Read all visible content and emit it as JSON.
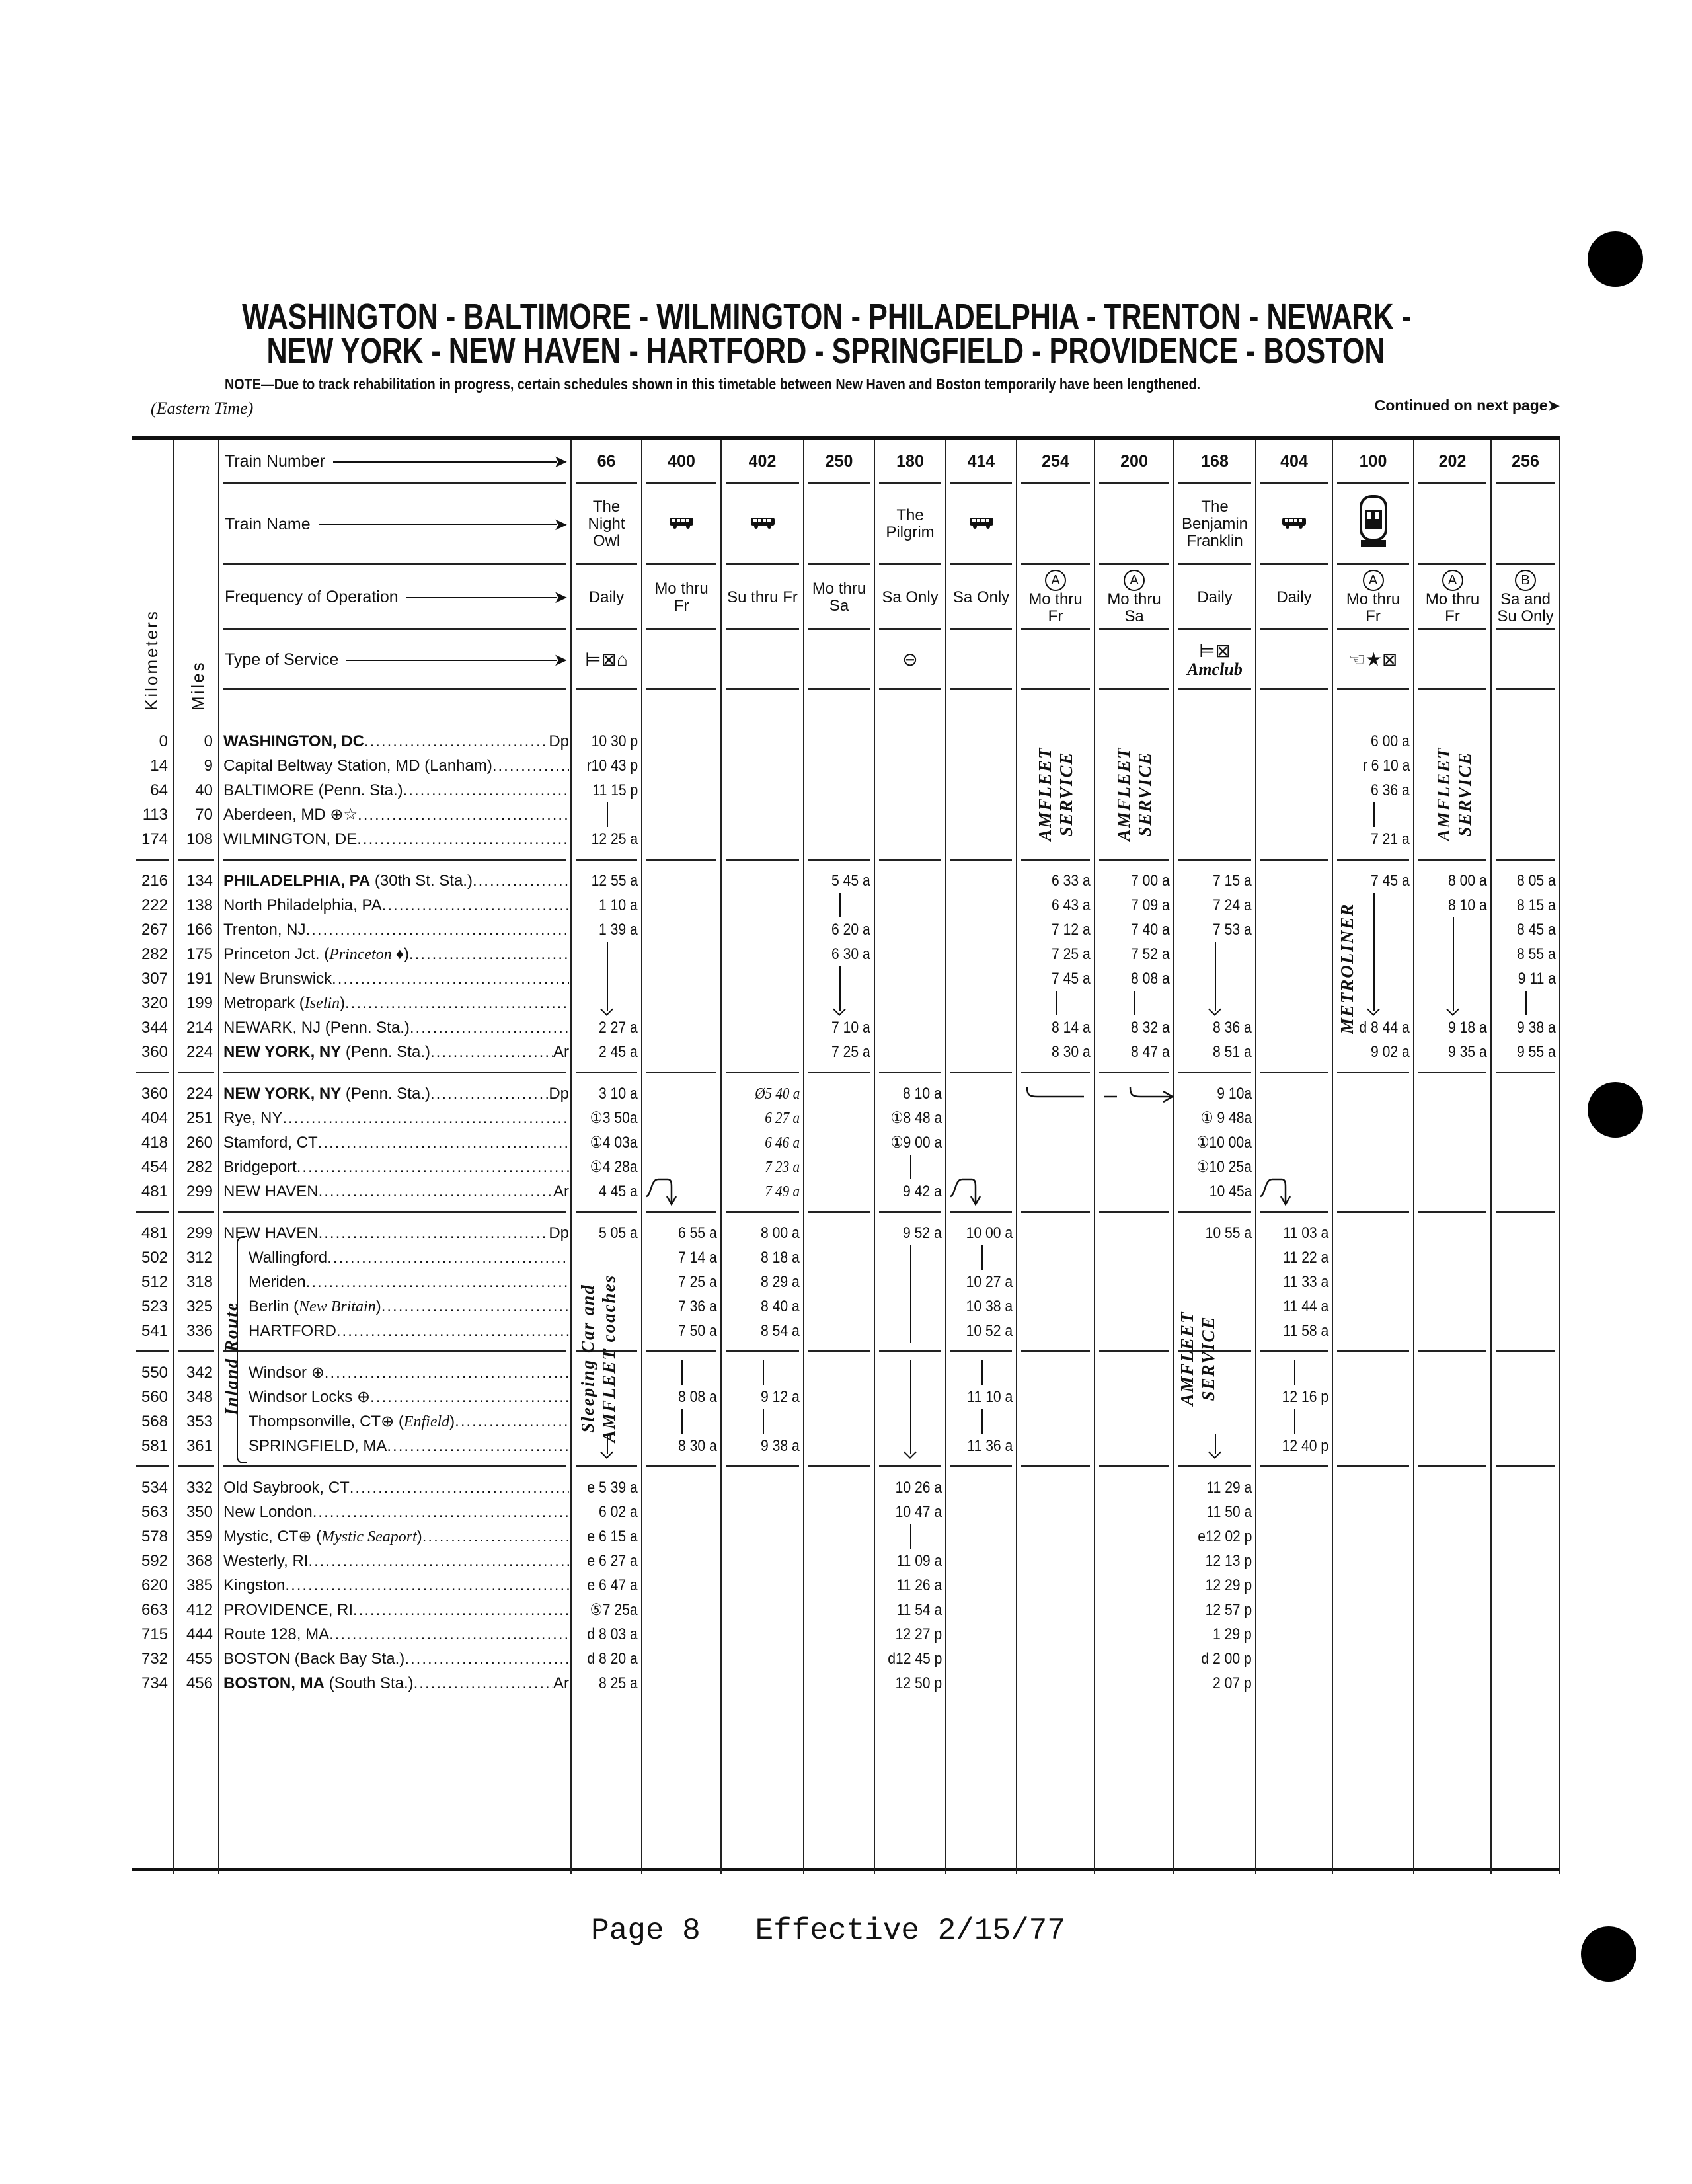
{
  "title_line1": "WASHINGTON - BALTIMORE - WILMINGTON - PHILADELPHIA - TRENTON - NEWARK -",
  "title_line2": "NEW YORK - NEW HAVEN - HARTFORD - SPRINGFIELD - PROVIDENCE - BOSTON",
  "note": "NOTE—Due to track rehabilitation in progress, certain schedules shown in this timetable between New Haven and Boston temporarily have been lengthened.",
  "time_zone": "(Eastern Time)",
  "continued": "Continued on next page",
  "footer": "Page 8   Effective 2/15/77",
  "header_labels": {
    "kilometers": "Kilometers",
    "miles": "Miles",
    "train_number": "Train Number",
    "train_name": "Train Name",
    "frequency": "Frequency of Operation",
    "service": "Type of Service"
  },
  "trains": [
    {
      "number": "66",
      "name": [
        "The",
        "Night",
        "Owl"
      ],
      "freq_mark": "",
      "freq": [
        "Daily"
      ],
      "service_icons": [
        "sleeping-car",
        "dining-car",
        "lounge-car"
      ]
    },
    {
      "number": "400",
      "name_icon": "bus-icon",
      "freq_mark": "",
      "freq": [
        "Mo thru",
        "Fr"
      ]
    },
    {
      "number": "402",
      "name_icon": "bus-icon",
      "freq_mark": "",
      "freq": [
        "Su thru Fr"
      ]
    },
    {
      "number": "250",
      "freq_mark": "",
      "freq": [
        "Mo thru",
        "Sa"
      ]
    },
    {
      "number": "180",
      "name": [
        "The",
        "Pilgrim"
      ],
      "freq_mark": "",
      "freq": [
        "Sa Only"
      ],
      "service_icons": [
        "snack-bar"
      ]
    },
    {
      "number": "414",
      "name_icon": "bus-icon",
      "freq_mark": "",
      "freq": [
        "Sa Only"
      ]
    },
    {
      "number": "254",
      "freq_mark": "A",
      "freq": [
        "Mo thru",
        "Fr"
      ]
    },
    {
      "number": "200",
      "freq_mark": "A",
      "freq": [
        "Mo thru",
        "Sa"
      ]
    },
    {
      "number": "168",
      "name": [
        "The",
        "Benjamin",
        "Franklin"
      ],
      "freq_mark": "",
      "freq": [
        "Daily"
      ],
      "service_icons": [
        "sleeping-car",
        "dining-car"
      ],
      "service_text": "Amclub"
    },
    {
      "number": "404",
      "name_icon": "bus-icon",
      "freq_mark": "",
      "freq": [
        "Daily"
      ]
    },
    {
      "number": "100",
      "name_icon": "metroliner-icon",
      "freq_mark": "A",
      "freq": [
        "Mo thru",
        "Fr"
      ],
      "service_icons": [
        "parlor-car",
        "star",
        "dining-car"
      ]
    },
    {
      "number": "202",
      "freq_mark": "A",
      "freq": [
        "Mo thru",
        "Fr"
      ]
    },
    {
      "number": "256",
      "freq_mark": "B",
      "freq": [
        "Sa and",
        "Su Only"
      ]
    }
  ],
  "vertical_notes": {
    "amfleet": [
      "AMFLEET",
      "SERVICE"
    ],
    "metroliner": "METROLINER",
    "sleeping": [
      "Sleeping Car and",
      "AMFLEET coaches"
    ],
    "inland": "Inland Route"
  },
  "sections": [
    {
      "rows": [
        {
          "km": "0",
          "mi": "0",
          "name": "WASHINGTON, DC",
          "bold": true,
          "da": "Dp",
          "times": [
            "10 30 p",
            "",
            "",
            "",
            "",
            "",
            "",
            "",
            "",
            "",
            "6 00 a",
            "",
            ""
          ]
        },
        {
          "km": "14",
          "mi": "9",
          "name": "Capital Beltway Station, MD (Lanham)",
          "times": [
            "r10 43 p",
            "",
            "",
            "",
            "",
            "",
            "",
            "",
            "",
            "",
            "r 6 10 a",
            "",
            ""
          ]
        },
        {
          "km": "64",
          "mi": "40",
          "name": "BALTIMORE (Penn. Sta.)",
          "times": [
            "11 15 p",
            "",
            "",
            "",
            "",
            "",
            "",
            "",
            "",
            "",
            "6 36 a",
            "",
            ""
          ]
        },
        {
          "km": "113",
          "mi": "70",
          "name": "Aberdeen, MD ⊕☆",
          "times": [
            "|",
            "",
            "",
            "",
            "",
            "",
            "",
            "",
            "",
            "",
            "|",
            "",
            ""
          ]
        },
        {
          "km": "174",
          "mi": "108",
          "name": "WILMINGTON, DE",
          "times": [
            "12 25 a",
            "",
            "",
            "",
            "",
            "",
            "",
            "",
            "",
            "",
            "7 21 a",
            "",
            ""
          ]
        }
      ]
    },
    {
      "rows": [
        {
          "km": "216",
          "mi": "134",
          "name": "PHILADELPHIA, PA",
          "bold": true,
          "tail": " (30th St. Sta.)",
          "times": [
            "12 55 a",
            "",
            "",
            "5 45 a",
            "",
            "",
            "6 33 a",
            "7 00 a",
            "7 15 a",
            "",
            "7 45 a",
            "8 00 a",
            "8 05 a"
          ]
        },
        {
          "km": "222",
          "mi": "138",
          "name": "North Philadelphia, PA",
          "times": [
            "1 10 a",
            "",
            "",
            "|",
            "",
            "",
            "6 43 a",
            "7 09 a",
            "7 24 a",
            "",
            "|",
            "8 10 a",
            "8 15 a"
          ]
        },
        {
          "km": "267",
          "mi": "166",
          "name": "Trenton, NJ",
          "times": [
            "1 39 a",
            "",
            "",
            "6 20 a",
            "",
            "",
            "7 12 a",
            "7 40 a",
            "7 53 a",
            "",
            "|",
            "|",
            "8 45 a"
          ]
        },
        {
          "km": "282",
          "mi": "175",
          "name": "Princeton Jct. (",
          "italic": "Princeton ♦",
          "tail": ")",
          "times": [
            "|",
            "",
            "",
            "6 30 a",
            "",
            "",
            "7 25 a",
            "7 52 a",
            "|",
            "",
            "|",
            "|",
            "8 55 a"
          ]
        },
        {
          "km": "307",
          "mi": "191",
          "name": "New Brunswick",
          "times": [
            "|",
            "",
            "",
            "|",
            "",
            "",
            "7 45 a",
            "8 08 a",
            "|",
            "",
            "|",
            "|",
            "9 11 a"
          ]
        },
        {
          "km": "320",
          "mi": "199",
          "name": "Metropark (",
          "italic": "Iselin",
          "tail": ")",
          "times": [
            "↓",
            "",
            "",
            "↓",
            "",
            "",
            "|",
            "|",
            "↓",
            "",
            "↓",
            "↓",
            "|"
          ]
        },
        {
          "km": "344",
          "mi": "214",
          "name": "NEWARK, NJ (Penn. Sta.)",
          "times": [
            "2 27 a",
            "",
            "",
            "7 10 a",
            "",
            "",
            "8 14 a",
            "8 32 a",
            "8 36 a",
            "",
            "d 8 44 a",
            "9 18 a",
            "9 38 a"
          ]
        },
        {
          "km": "360",
          "mi": "224",
          "name": "NEW YORK, NY",
          "bold": true,
          "tail": " (Penn. Sta.)",
          "da": "Ar",
          "times": [
            "2 45 a",
            "",
            "",
            "7 25 a",
            "",
            "",
            "8 30 a",
            "8 47 a",
            "8 51 a",
            "",
            "9 02 a",
            "9 35 a",
            "9 55 a"
          ]
        }
      ]
    },
    {
      "rows": [
        {
          "km": "360",
          "mi": "224",
          "name": "NEW YORK, NY",
          "bold": true,
          "tail": " (Penn. Sta.)",
          "da": "Dp",
          "times": [
            "3 10 a",
            "",
            "Ø5 40 a",
            "",
            "8 10 a",
            "",
            "",
            "",
            "9 10a",
            "",
            "",
            "",
            ""
          ]
        },
        {
          "km": "404",
          "mi": "251",
          "name": "Rye, NY",
          "times": [
            "①3 50a",
            "",
            "6 27 a",
            "",
            "①8 48 a",
            "",
            "",
            "",
            "① 9 48a",
            "",
            "",
            "",
            ""
          ]
        },
        {
          "km": "418",
          "mi": "260",
          "name": "Stamford, CT",
          "times": [
            "①4 03a",
            "",
            "6 46 a",
            "",
            "①9 00 a",
            "",
            "",
            "",
            "①10 00a",
            "",
            "",
            "",
            ""
          ]
        },
        {
          "km": "454",
          "mi": "282",
          "name": "Bridgeport",
          "times": [
            "①4 28a",
            "",
            "7 23 a",
            "",
            "|",
            "",
            "",
            "",
            "①10 25a",
            "",
            "",
            "",
            ""
          ]
        },
        {
          "km": "481",
          "mi": "299",
          "name": "NEW HAVEN",
          "da": "Ar",
          "times": [
            "4 45 a",
            "⤵",
            "7 49 a",
            "",
            "9 42 a",
            "⤵",
            "",
            "",
            "10 45a",
            "⤵",
            "",
            "",
            ""
          ]
        }
      ]
    },
    {
      "rows": [
        {
          "km": "481",
          "mi": "299",
          "name": "NEW HAVEN",
          "da": "Dp",
          "times": [
            "5 05 a",
            "6 55 a",
            "8 00 a",
            "",
            "9 52 a",
            "10 00 a",
            "",
            "",
            "10 55 a",
            "11 03 a",
            "",
            "",
            ""
          ]
        },
        {
          "km": "502",
          "mi": "312",
          "name": "Wallingford",
          "inland": true,
          "times": [
            "",
            "7 14 a",
            "8 18 a",
            "",
            "|",
            "|",
            "",
            "",
            "",
            "11 22 a",
            "",
            "",
            ""
          ]
        },
        {
          "km": "512",
          "mi": "318",
          "name": "Meriden",
          "inland": true,
          "times": [
            "",
            "7 25 a",
            "8 29 a",
            "",
            "|",
            "10 27 a",
            "",
            "",
            "",
            "11 33 a",
            "",
            "",
            ""
          ]
        },
        {
          "km": "523",
          "mi": "325",
          "name": "Berlin (",
          "italic": "New Britain",
          "tail": ")",
          "inland": true,
          "times": [
            "",
            "7 36 a",
            "8 40 a",
            "",
            "|",
            "10 38 a",
            "",
            "",
            "",
            "11 44 a",
            "",
            "",
            ""
          ]
        },
        {
          "km": "541",
          "mi": "336",
          "name": "HARTFORD",
          "inland": true,
          "times": [
            "",
            "7 50 a",
            "8 54 a",
            "",
            "|",
            "10 52 a",
            "",
            "",
            "",
            "11 58 a",
            "",
            "",
            ""
          ]
        }
      ]
    },
    {
      "rows": [
        {
          "km": "550",
          "mi": "342",
          "name": "Windsor ⊕",
          "inland": true,
          "times": [
            "",
            "|",
            "|",
            "",
            "|",
            "|",
            "",
            "",
            "",
            "|",
            "",
            "",
            ""
          ]
        },
        {
          "km": "560",
          "mi": "348",
          "name": "Windsor Locks ⊕",
          "inland": true,
          "times": [
            "",
            "8 08 a",
            "9 12 a",
            "",
            "|",
            "11 10 a",
            "",
            "",
            "",
            "12 16 p",
            "",
            "",
            ""
          ]
        },
        {
          "km": "568",
          "mi": "353",
          "name": "Thompsonville, CT⊕ (",
          "italic": "Enfield",
          "tail": ")",
          "inland": true,
          "times": [
            "",
            "|",
            "|",
            "",
            "|",
            "|",
            "",
            "",
            "",
            "|",
            "",
            "",
            ""
          ]
        },
        {
          "km": "581",
          "mi": "361",
          "name": "SPRINGFIELD, MA",
          "inland": true,
          "times": [
            "↓",
            "8 30 a",
            "9 38 a",
            "",
            "↓",
            "11 36 a",
            "",
            "",
            "↓",
            "12 40 p",
            "",
            "",
            ""
          ]
        }
      ]
    },
    {
      "rows": [
        {
          "km": "534",
          "mi": "332",
          "name": "Old Saybrook, CT",
          "times": [
            "e 5 39 a",
            "",
            "",
            "",
            "10 26 a",
            "",
            "",
            "",
            "11 29 a",
            "",
            "",
            "",
            ""
          ]
        },
        {
          "km": "563",
          "mi": "350",
          "name": "New London",
          "times": [
            "6 02 a",
            "",
            "",
            "",
            "10 47 a",
            "",
            "",
            "",
            "11 50 a",
            "",
            "",
            "",
            ""
          ]
        },
        {
          "km": "578",
          "mi": "359",
          "name": "Mystic, CT⊕ (",
          "italic": "Mystic Seaport",
          "tail": ")",
          "times": [
            "e 6 15 a",
            "",
            "",
            "",
            "|",
            "",
            "",
            "",
            "e12 02 p",
            "",
            "",
            "",
            ""
          ]
        },
        {
          "km": "592",
          "mi": "368",
          "name": "Westerly, RI",
          "times": [
            "e 6 27 a",
            "",
            "",
            "",
            "11 09 a",
            "",
            "",
            "",
            "12 13 p",
            "",
            "",
            "",
            ""
          ]
        },
        {
          "km": "620",
          "mi": "385",
          "name": "Kingston",
          "times": [
            "e 6 47 a",
            "",
            "",
            "",
            "11 26 a",
            "",
            "",
            "",
            "12 29 p",
            "",
            "",
            "",
            ""
          ]
        },
        {
          "km": "663",
          "mi": "412",
          "name": "PROVIDENCE, RI",
          "times": [
            "⑤7 25a",
            "",
            "",
            "",
            "11 54 a",
            "",
            "",
            "",
            "12 57 p",
            "",
            "",
            "",
            ""
          ]
        },
        {
          "km": "715",
          "mi": "444",
          "name": "Route 128, MA",
          "times": [
            "d 8 03 a",
            "",
            "",
            "",
            "12 27 p",
            "",
            "",
            "",
            "1 29 p",
            "",
            "",
            "",
            ""
          ]
        },
        {
          "km": "732",
          "mi": "455",
          "name": "BOSTON (Back Bay Sta.)",
          "times": [
            "d 8 20 a",
            "",
            "",
            "",
            "d12 45 p",
            "",
            "",
            "",
            "d 2 00 p",
            "",
            "",
            "",
            ""
          ]
        },
        {
          "km": "734",
          "mi": "456",
          "name": "BOSTON, MA",
          "bold": true,
          "tail": " (South Sta.)",
          "da": "Ar",
          "times": [
            "8 25 a",
            "",
            "",
            "",
            "12 50 p",
            "",
            "",
            "",
            "2 07 p",
            "",
            "",
            "",
            ""
          ]
        }
      ]
    }
  ]
}
